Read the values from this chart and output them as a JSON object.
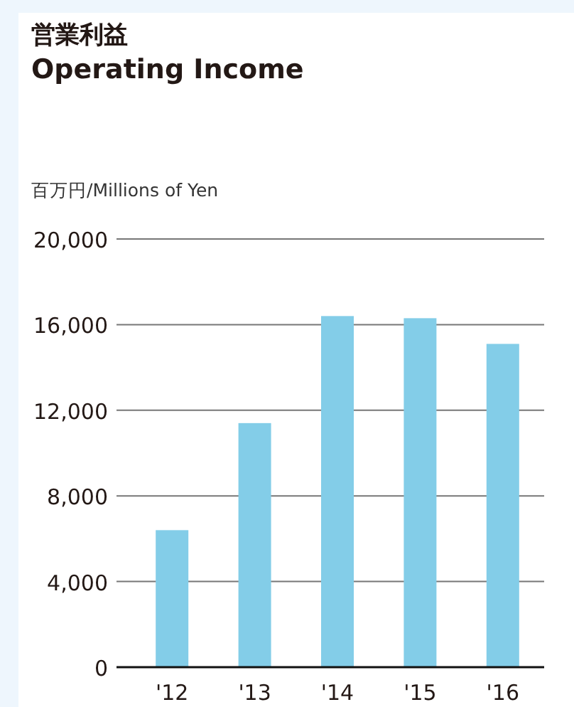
{
  "chart_data": {
    "type": "bar",
    "title": "営業利益\nOperating Income",
    "ylabel": "百万円/Millions of Yen",
    "categories": [
      "'12",
      "'13",
      "'14",
      "'15",
      "'16"
    ],
    "values": [
      6400,
      11400,
      16400,
      16300,
      15100
    ],
    "color": "#83cde8",
    "ylim": [
      0,
      20000
    ],
    "yticks": [
      {
        "value": 0,
        "label": "0"
      },
      {
        "value": 4000,
        "label": "4,000"
      },
      {
        "value": 8000,
        "label": "8,000"
      },
      {
        "value": 12000,
        "label": "12,000"
      },
      {
        "value": 16000,
        "label": "16,000"
      },
      {
        "value": 20000,
        "label": "20,000"
      }
    ],
    "grid": "y"
  }
}
